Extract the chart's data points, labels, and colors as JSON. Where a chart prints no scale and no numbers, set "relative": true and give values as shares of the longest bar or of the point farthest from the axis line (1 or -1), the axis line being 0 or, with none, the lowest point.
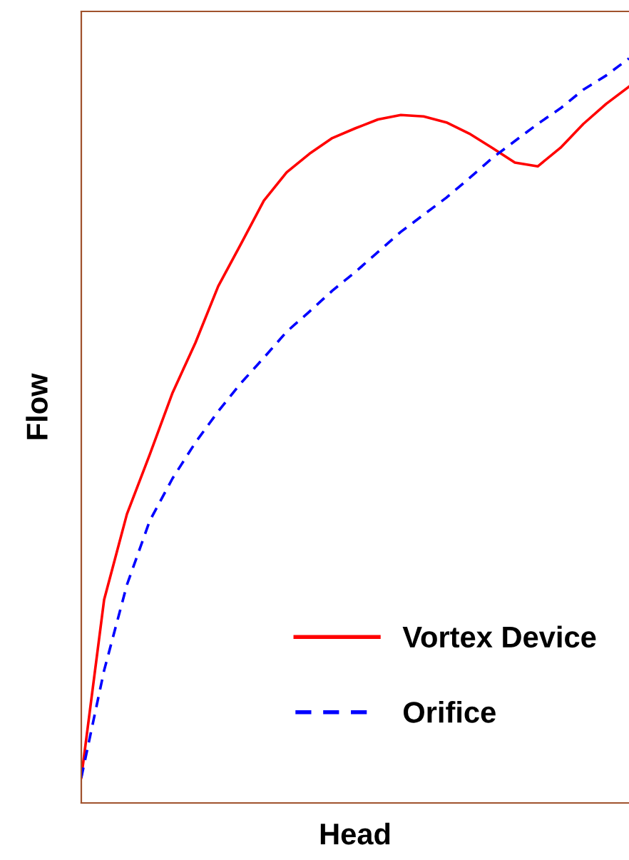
{
  "chart_data": {
    "type": "line",
    "relative": true,
    "xlabel": "Head",
    "ylabel": "Flow",
    "legend": "bottom right",
    "categories": [
      null,
      null,
      null,
      null,
      null,
      null,
      null,
      null,
      null,
      null,
      null,
      null,
      null,
      null,
      null,
      null,
      null,
      null,
      null,
      null,
      null,
      null,
      null,
      null,
      null
    ],
    "series": [
      {
        "name": "Vortex Device",
        "color": "#ff0000",
        "line_style": "solid",
        "values": [
          0.034,
          0.273,
          0.388,
          0.468,
          0.551,
          0.618,
          0.694,
          0.751,
          0.809,
          0.847,
          0.872,
          0.893,
          0.906,
          0.918,
          0.924,
          0.922,
          0.914,
          0.899,
          0.88,
          0.86,
          0.855,
          0.88,
          0.912,
          0.939,
          0.962
        ]
      },
      {
        "name": "Orifice",
        "color": "#0000ff",
        "line_style": "dashed",
        "values": [
          0.034,
          0.178,
          0.293,
          0.379,
          0.436,
          0.484,
          0.526,
          0.564,
          0.598,
          0.633,
          0.66,
          0.688,
          0.713,
          0.74,
          0.767,
          0.79,
          0.813,
          0.839,
          0.866,
          0.889,
          0.912,
          0.933,
          0.958,
          0.977,
          1.0
        ]
      }
    ]
  }
}
